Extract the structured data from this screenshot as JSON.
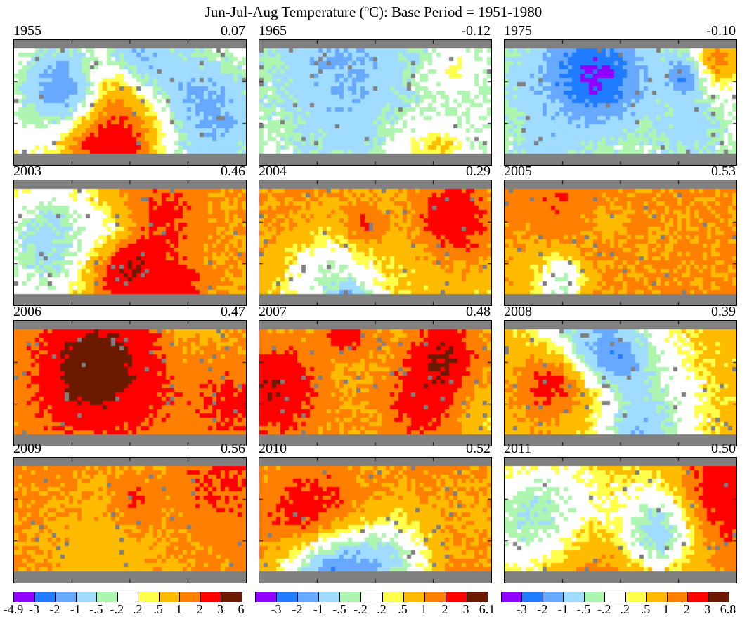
{
  "title": {
    "prefix": "Jun-Jul-Aug Temperature (",
    "sup": "o",
    "suffix": "C): Base Period = 1951-1980"
  },
  "colors": [
    "#8f00ff",
    "#1f7bff",
    "#66a9ff",
    "#9fdcff",
    "#aef5b0",
    "#ffffff",
    "#ffff4c",
    "#ffbb00",
    "#ff7f00",
    "#ff0000",
    "#6b1a00"
  ],
  "missing_color": "#808080",
  "panels": [
    {
      "year": "1955",
      "mean": "0.07"
    },
    {
      "year": "1965",
      "mean": "-0.12"
    },
    {
      "year": "1975",
      "mean": "-0.10"
    },
    {
      "year": "2003",
      "mean": "0.46"
    },
    {
      "year": "2004",
      "mean": "0.29"
    },
    {
      "year": "2005",
      "mean": "0.53"
    },
    {
      "year": "2006",
      "mean": "0.47"
    },
    {
      "year": "2007",
      "mean": "0.48"
    },
    {
      "year": "2008",
      "mean": "0.39"
    },
    {
      "year": "2009",
      "mean": "0.56"
    },
    {
      "year": "2010",
      "mean": "0.52"
    },
    {
      "year": "2011",
      "mean": "0.50"
    }
  ],
  "colorbars": [
    {
      "labels": [
        "-4.9",
        "-3",
        "-2",
        "-1",
        "-.5",
        "-.2",
        ".2",
        ".5",
        "1",
        "2",
        "3",
        "6"
      ]
    },
    {
      "labels": [
        "",
        "-3",
        "-2",
        "-1",
        "-.5",
        "-.2",
        ".2",
        ".5",
        "1",
        "2",
        "3",
        "6.1"
      ]
    },
    {
      "labels": [
        "",
        "-3",
        "-2",
        "-1",
        "-.5",
        "-.2",
        ".2",
        ".5",
        "1",
        "2",
        "3",
        "6.8"
      ]
    }
  ]
}
